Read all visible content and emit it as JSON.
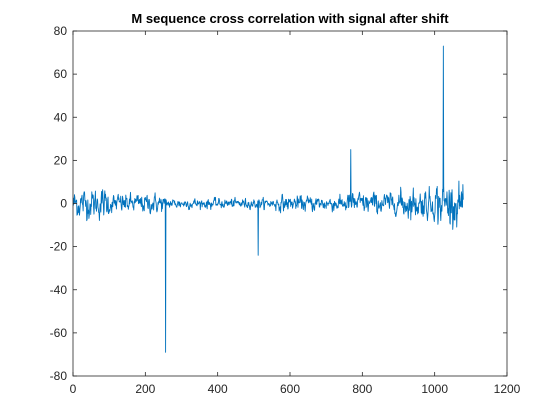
{
  "chart_data": {
    "type": "line",
    "title": "M sequence cross correlation with signal after shift",
    "xlabel": "",
    "ylabel": "",
    "xlim": [
      0,
      1200
    ],
    "ylim": [
      -80,
      80
    ],
    "x_ticks": [
      0,
      200,
      400,
      600,
      800,
      1000,
      1200
    ],
    "y_ticks": [
      -80,
      -60,
      -40,
      -20,
      0,
      20,
      40,
      60,
      80
    ],
    "x_tick_labels": [
      "0",
      "200",
      "400",
      "600",
      "800",
      "1000",
      "1200"
    ],
    "y_tick_labels": [
      "-80",
      "-60",
      "-40",
      "-20",
      "0",
      "20",
      "40",
      "60",
      "80"
    ],
    "grid": false,
    "line_color": "#0072BD",
    "series": [
      {
        "x_start": 1,
        "x_end": 1080,
        "noise_segments": [
          {
            "from": 1,
            "to": 100,
            "amplitude": 3.5
          },
          {
            "from": 100,
            "to": 250,
            "amplitude": 2.2
          },
          {
            "from": 250,
            "to": 560,
            "amplitude": 1.2
          },
          {
            "from": 560,
            "to": 750,
            "amplitude": 1.8
          },
          {
            "from": 750,
            "to": 900,
            "amplitude": 2.5
          },
          {
            "from": 900,
            "to": 1000,
            "amplitude": 3.5
          },
          {
            "from": 1000,
            "to": 1080,
            "amplitude": 5
          }
        ],
        "peaks": [
          {
            "x": 256,
            "y": -69
          },
          {
            "x": 512,
            "y": -24
          },
          {
            "x": 768,
            "y": 25
          },
          {
            "x": 1024,
            "y": 73
          }
        ]
      }
    ]
  }
}
